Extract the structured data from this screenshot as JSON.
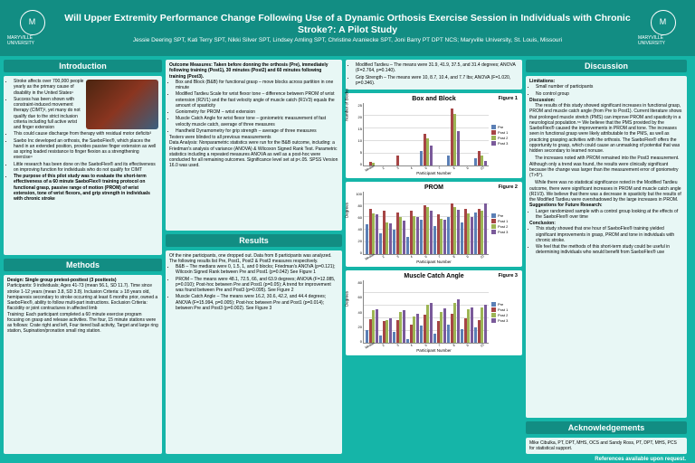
{
  "header": {
    "logo_text": "MARYVILLE UNIVERSITY",
    "logo_sub": "ST. LOUIS",
    "title": "Will Upper Extremity Performance Change Following Use of a Dynamic Orthosis Exercise Session in Individuals with Chronic Stroke?: A Pilot Study",
    "authors": "Jessie Deering SPT, Kati Terry SPT, Nikki Silver SPT, Lindsey Amling SPT, Christine Araniecke SPT, Joni Barry PT DPT NCS; Maryville University, St. Louis, Missouri"
  },
  "sections": {
    "intro_head": "Introduction",
    "methods_head": "Methods",
    "results_head": "Results",
    "discussion_head": "Discussion",
    "ack_head": "Acknowledgements",
    "ack_body": "Mike Cibulka, PT, DPT, MHS, OCS and Sandy Ross, PT, DPT, MHS, PCS for statistical support."
  },
  "intro": {
    "b1": "Stroke affects over 700,000 people yearly as the primary cause of disability in the United States¹",
    "b2": "Success has been shown with constraint-induced movement therapy (CIMT)², yet many do not qualify due to the strict inclusion criteria including full active wrist and finger extension",
    "b3": "This could cause discharge from therapy with residual motor deficits³",
    "b4": "Saebo Inc developed an orthosis, the SaeboFlex®, which places the hand in an extended position, provides passive finger extension as well as spring loaded resistance to finger flexion as a strengthening exercise⁴",
    "b5": "Little research has been done on the SaeboFlex® and its effectiveness on improving function for individuals who do not qualify for CIMT",
    "purpose": "The purpose of this pilot study was to evaluate the short-term effectiveness of a 60 minute SaeboFlex® training protocol on functional grasp, passive range of motion (PROM) of wrist extension, tone of wrist flexors, and grip strength in individuals with chronic stroke"
  },
  "methods": {
    "design": "Design: Single group pretest-posttest (3 posttests)",
    "participants": "Participants: 9 individuals; Ages 41-73 (mean 56.1, SD 11.7). Time since stroke 1-12 years (mean 3.8, SD 3.8). Inclusion Criteria: ≥ 18 years old, hemiparesis secondary to stroke occurring at least 6 months prior, owned a SaeboFlex®, ability to follow multi-part instructions. Exclusion Criteria: flaccidity or joint contractures in affected limb",
    "training": "Training: Each participant completed a 60 minute exercise program focusing on grasp and release activities. The four, 15 minute stations were as follows: Crate right and left, Four tiered ball activity, Target and large ring station, Supination/pronation small ring station."
  },
  "outcomes": {
    "measures": "Outcome Measures: Taken before donning the orthosis (Pre), immediately following training (Post1), 30 minutes (Post2) and 60 minutes following training (Post3).",
    "bb": "Box and Block (B&B) for functional grasp – move blocks across partition in one minute",
    "mts": "Modified Tardieu Scale for wrist flexor tone – difference between PROM of wrist extension (R2V1) and the fast velocity angle of muscle catch (R1V3) equals the amount of spasticity",
    "gon": "Goniometry for PROM – wrist extension",
    "mca": "Muscle Catch Angle for wrist flexor tone – goniometric measurement of fast velocity muscle catch, average of three measures",
    "dyn": "Handheld Dynamometry for grip strength – average of three measures",
    "blind": "Testers were blinded to all previous measurements",
    "analysis": "Data Analysis: Nonparametric statistics were run for the B&B outcome, including: a Friedman's analysis of variance (ANOVA) & Wilcoxon Signed Rank Test. Parametric statistics including a repeated measures ANOVA as well as a post-hoc were conducted for all remaining outcomes. Significance level set at p<.05. SPSS Version 16.0 was used."
  },
  "results": {
    "intro_text": "Of the nine participants, one dropped out. Data from 8 participants was analyzed. The following results list Pre, Post1, Post2 & Post3 measures respectively.",
    "bb": "B&B – The medians were 0, 1.5, 1, and 0 blocks; Friedman's ANOVA (p=0.121); Wilcoxin Signed Rank between Pre and Post1 (p=0.042) See Figure 1",
    "prom": "PROM – The means were 48.1, 72.5, 66, and 63.9 degrees; ANOVA (F=12.085, p=0.010); Post-hoc between Pre and Post1 (p=0.05); A trend for improvement was found between Pre and Post3 (p=0.095). See Figure 2",
    "mca": "Muscle Catch Angle – The means were 16.2, 30.6, 42.2, and 44.4 degrees; ANOVA (F=15.994, p=0.005); Post-hoc between Pre and Post1 (p=0.014); between Pre and Post3 (p=0.002). See Figure 3",
    "mt": "Modified Tardieu – The means were 31.9, 41.9, 37.5, and 31.4 degrees; ANOVA (F=2.764, p=0.140).",
    "gs": "Grip Strength – The means were 10, 8.7, 10.4, and 7.7 lbs; ANOVA (F=1.020, p=0.346)."
  },
  "discussion": {
    "lim_head": "Limitations:",
    "lim1": "Small number of participants",
    "lim2": "No control group",
    "disc_head": "Discussion:",
    "p1": "The results of this study showed significant increases in functional grasp, PROM and muscle catch angle (from Pre to Post1). Current literature shows that prolonged muscle stretch (PMS) can improve PROM and spasticity in a neurological population.⁵⁶ We believe that the PMS provided by the SaeboFlex® caused the improvements in PROM and tone. The increases seen in functional grasp were likely attributable to the PMS, as well as practicing grasping activities with the orthosis. The SaeboFlex® offers the opportunity to grasp, which could cause an unmasking of potential that was hidden secondary to learned nonuse.",
    "p2": "The increases noted with PROM remained into the Post3 measurement. Although only a trend was found, the results were clinically significant because the change was larger than the measurement error of goniometry (T>5°).",
    "p3": "While there was no statistical significance noted in the Modified Tardieu outcome, there were significant increases in PROM and muscle catch angle (R1V3). We believe that there was a decrease in spasticity but the results of the Modified Tardieu were overshadowed by the large increases in PROM.",
    "sug_head": "Suggestions for Future Research:",
    "sug1": "Larger randomized sample with a control group looking at the effects of the SaeboFlex® over time",
    "conc_head": "Conclusion:",
    "conc1": "This study showed that one hour of SaeboFlex® training yielded significant improvements in grasp, PROM and tone in individuals with chronic stroke.",
    "conc2": "We feel that the methods of this short-term study could be useful in determining individuals who would benefit from SaeboFlex® use"
  },
  "charts": {
    "series_labels": [
      "Pre",
      "Post 1",
      "Post 2",
      "Post 3"
    ],
    "series_colors": [
      "#5b7fb5",
      "#a64545",
      "#9db554",
      "#7a5a9a"
    ],
    "participants": [
      "Median",
      "2",
      "3",
      "4",
      "6",
      "7",
      "8",
      "9",
      "10"
    ],
    "box_block": {
      "title": "Box and Block",
      "figure": "Figure 1",
      "ylabel": "Number of Blocks",
      "ymax": 25,
      "ytick": 5,
      "data": [
        [
          0,
          1.5,
          1,
          0
        ],
        [
          0,
          0,
          0,
          0
        ],
        [
          0,
          4,
          0,
          0
        ],
        [
          0,
          0,
          0,
          0
        ],
        [
          6,
          13,
          11,
          8
        ],
        [
          0,
          0,
          0,
          0
        ],
        [
          4,
          23,
          21,
          14
        ],
        [
          0,
          0,
          0,
          0
        ],
        [
          3,
          6,
          4,
          2
        ]
      ]
    },
    "prom": {
      "title": "PROM",
      "figure": "Figure 2",
      "ylabel": "Degrees",
      "ymax": 100,
      "ytick": 20,
      "data": [
        [
          48,
          73,
          66,
          64
        ],
        [
          34,
          71,
          52,
          50
        ],
        [
          40,
          67,
          60,
          55
        ],
        [
          28,
          70,
          62,
          60
        ],
        [
          56,
          80,
          76,
          70
        ],
        [
          46,
          65,
          58,
          56
        ],
        [
          60,
          82,
          76,
          72
        ],
        [
          52,
          74,
          66,
          60
        ],
        [
          68,
          74,
          70,
          82
        ]
      ]
    },
    "mca": {
      "title": "Muscle Catch Angle",
      "figure": "Figure 3",
      "ylabel": "Degrees",
      "ymax": 80,
      "ytick": 20,
      "data": [
        [
          16,
          31,
          42,
          44
        ],
        [
          10,
          28,
          30,
          32
        ],
        [
          14,
          30,
          40,
          42
        ],
        [
          5,
          24,
          34,
          38
        ],
        [
          22,
          36,
          50,
          52
        ],
        [
          12,
          28,
          40,
          45
        ],
        [
          24,
          38,
          52,
          56
        ],
        [
          18,
          32,
          44,
          46
        ],
        [
          20,
          30,
          46,
          50
        ]
      ]
    }
  },
  "footer": "References available upon request."
}
